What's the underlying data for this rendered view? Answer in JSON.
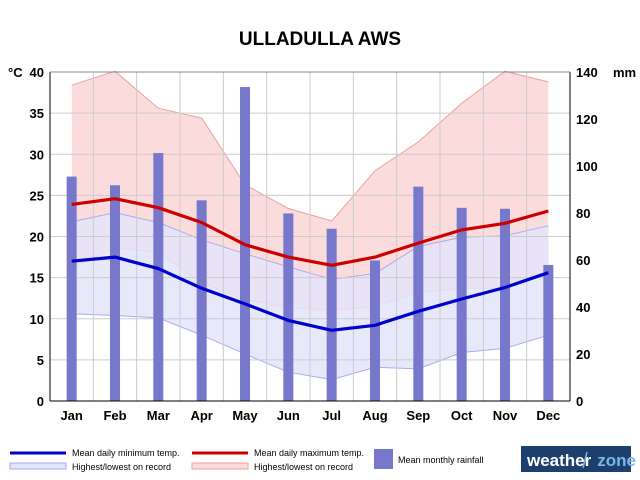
{
  "chart_data": {
    "type": "combo",
    "title": "ULLADULLA AWS",
    "categories": [
      "Jan",
      "Feb",
      "Mar",
      "Apr",
      "May",
      "Jun",
      "Jul",
      "Aug",
      "Sep",
      "Oct",
      "Nov",
      "Dec"
    ],
    "left_axis": {
      "unit_label": "°C",
      "range": [
        0,
        40
      ],
      "ticks": [
        0,
        5,
        10,
        15,
        20,
        25,
        30,
        35,
        40
      ]
    },
    "right_axis": {
      "unit_label": "mm",
      "range": [
        0,
        140
      ],
      "ticks": [
        0,
        20,
        40,
        60,
        80,
        100,
        120,
        140
      ]
    },
    "grid": true,
    "series": [
      {
        "name": "Mean daily minimum temp.",
        "kind": "line",
        "axis": "left",
        "color": "#0000cc",
        "values": [
          17.0,
          17.5,
          16.1,
          13.7,
          11.8,
          9.8,
          8.6,
          9.2,
          10.9,
          12.4,
          13.8,
          15.6
        ]
      },
      {
        "name": "Mean daily maximum temp.",
        "kind": "line",
        "axis": "left",
        "color": "#cc0000",
        "values": [
          23.9,
          24.6,
          23.5,
          21.7,
          19.0,
          17.5,
          16.5,
          17.5,
          19.2,
          20.8,
          21.6,
          23.1
        ]
      },
      {
        "name": "Mean monthly rainfall",
        "kind": "bar",
        "axis": "right",
        "color": "#7777cc",
        "values": [
          95.5,
          91.8,
          105.5,
          85.4,
          133.6,
          79.8,
          73.3,
          59.8,
          91.2,
          82.2,
          81.8,
          57.9
        ]
      }
    ],
    "bands": [
      {
        "name": "Highest/lowest on record",
        "for": "Mean daily minimum temp.",
        "axis": "left",
        "fill": "#e4e4fa",
        "edge": "#aaaaee",
        "upper": [
          21.8,
          22.9,
          21.7,
          19.6,
          17.9,
          16.3,
          14.8,
          15.5,
          18.8,
          19.9,
          20.1,
          21.3
        ],
        "lower": [
          10.6,
          10.4,
          10.1,
          8.0,
          5.7,
          3.5,
          2.6,
          4.1,
          3.9,
          5.9,
          6.4,
          8.0
        ]
      },
      {
        "name": "Highest/lowest on record",
        "for": "Mean daily maximum temp.",
        "axis": "left",
        "fill": "#fbdcdc",
        "edge": "#eea0a0",
        "upper": [
          38.4,
          40.1,
          35.6,
          34.4,
          26.3,
          23.4,
          21.9,
          28.0,
          31.5,
          36.2,
          40.1,
          38.8
        ],
        "lower": [
          16.2,
          18.6,
          18.1,
          14.4,
          12.3,
          11.4,
          11.0,
          11.5,
          13.2,
          13.7,
          13.7,
          15.7
        ]
      }
    ],
    "legend": {
      "position": "bottom",
      "items": [
        "Mean daily minimum temp.",
        "Mean daily maximum temp.",
        "Mean monthly rainfall",
        "Highest/lowest on record",
        "Highest/lowest on record"
      ]
    }
  },
  "logo": {
    "part1": "weather",
    "part2": "zone"
  },
  "colors": {
    "background": "#ffffff",
    "grid": "#cccccc",
    "logo_bg": "#1d3f6e",
    "logo_zone": "#7ab8ec"
  }
}
